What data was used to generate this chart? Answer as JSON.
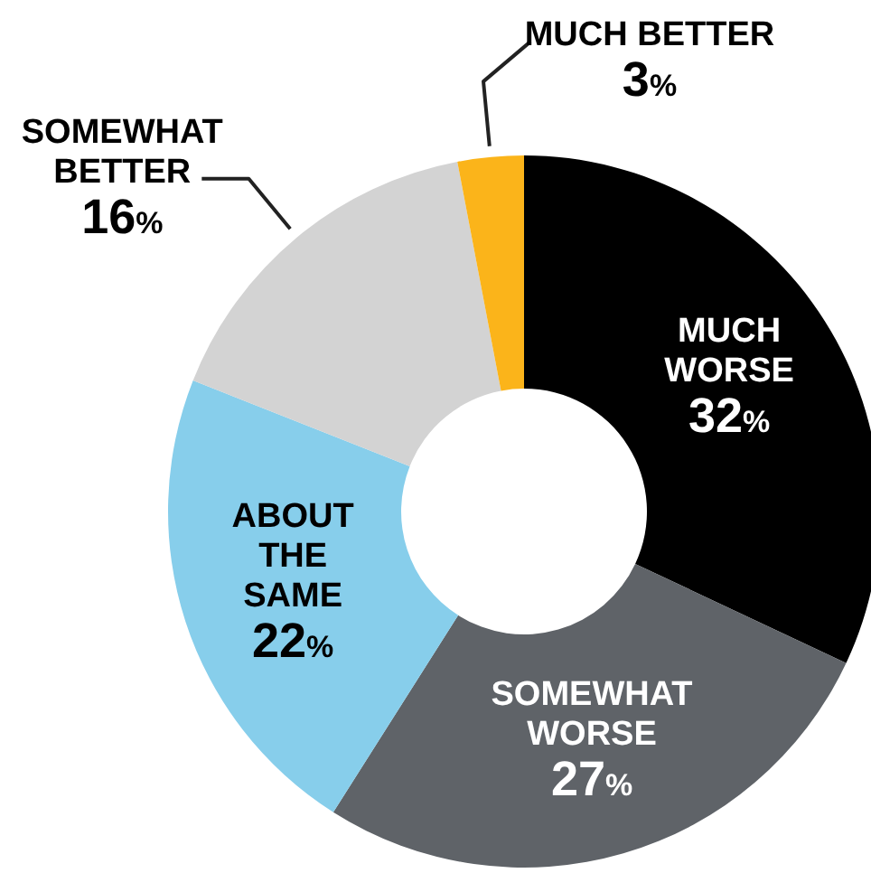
{
  "chart_data": {
    "type": "donut",
    "categories": [
      "MUCH WORSE",
      "SOMEWHAT WORSE",
      "ABOUT THE SAME",
      "SOMEWHAT BETTER",
      "MUCH BETTER"
    ],
    "values": [
      32,
      27,
      22,
      16,
      3
    ],
    "colors": [
      "#000000",
      "#5f6368",
      "#87ceeb",
      "#d3d3d3",
      "#fbb41a"
    ],
    "value_labels": [
      "32%",
      "27%",
      "22%",
      "16%",
      "3%"
    ]
  }
}
